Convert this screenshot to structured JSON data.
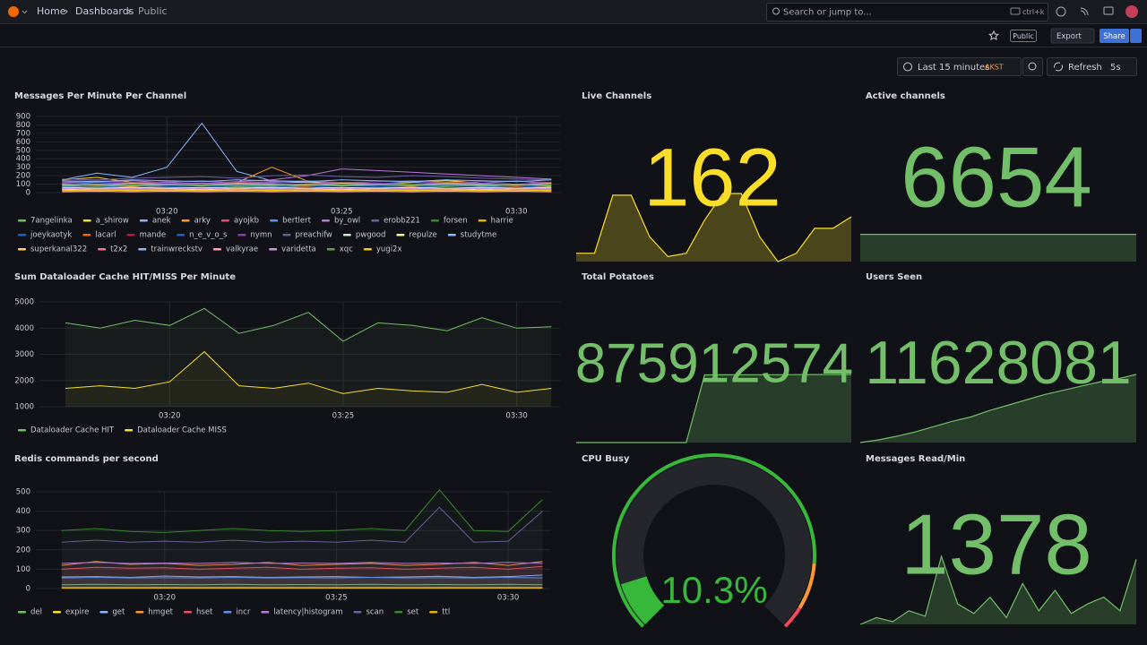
{
  "header": {
    "breadcrumbs": [
      "Home",
      "Dashboards",
      "Public"
    ],
    "search": "Search or jump to...",
    "shortcut": "ctrl+k"
  },
  "toolbar": {
    "public": "Public",
    "export": "Export",
    "share": "Share",
    "time_range": "Last 15 minutes",
    "timezone": "AKST",
    "refresh": "Refresh",
    "interval": "5s"
  },
  "panels": [
    {
      "type": "timeseries",
      "title": "Messages Per Minute Per Channel",
      "x": [
        197,
        198,
        199,
        200,
        201,
        202,
        203,
        204,
        205,
        206,
        207,
        208,
        209,
        210,
        211
      ],
      "xlim": [
        196.25,
        211.25
      ],
      "xticks": [
        {
          "value": 200,
          "label": "03:20"
        },
        {
          "value": 205,
          "label": "03:25"
        },
        {
          "value": 210,
          "label": "03:30"
        }
      ],
      "ylim": [
        0,
        900
      ],
      "yticks": [
        0,
        100,
        200,
        300,
        400,
        500,
        600,
        700,
        800,
        900
      ],
      "fill": false,
      "series": [
        {
          "name": "7angelinka",
          "color": "#73BF69",
          "values": [
            60,
            70,
            80,
            60,
            50,
            70,
            60,
            80,
            90,
            70,
            60,
            70,
            80,
            60,
            70
          ]
        },
        {
          "name": "a_shirow",
          "color": "#FADE2A",
          "values": [
            150,
            180,
            120,
            100,
            90,
            110,
            130,
            120,
            110,
            100,
            120,
            140,
            110,
            100,
            120
          ]
        },
        {
          "name": "anek",
          "color": "#8AB8FF",
          "values": [
            150,
            230,
            180,
            300,
            820,
            250,
            140,
            130,
            120,
            110,
            100,
            120,
            110,
            100,
            90
          ]
        },
        {
          "name": "arky",
          "color": "#FF9830",
          "values": [
            80,
            60,
            70,
            90,
            100,
            120,
            300,
            140,
            120,
            100,
            130,
            150,
            110,
            100,
            90
          ]
        },
        {
          "name": "ayojkb",
          "color": "#F2495C",
          "values": [
            40,
            50,
            60,
            50,
            40,
            60,
            50,
            40,
            60,
            50,
            40,
            50,
            60,
            50,
            40
          ]
        },
        {
          "name": "bertlert",
          "color": "#5794F2",
          "values": [
            100,
            120,
            110,
            130,
            90,
            100,
            120,
            140,
            110,
            100,
            130,
            120,
            110,
            140,
            100
          ]
        },
        {
          "name": "by_owl",
          "color": "#B877D9",
          "values": [
            120,
            130,
            140,
            120,
            110,
            130,
            150,
            200,
            280,
            260,
            240,
            220,
            200,
            180,
            160
          ]
        },
        {
          "name": "erobb221",
          "color": "#705DA0",
          "values": [
            160,
            150,
            170,
            180,
            190,
            170,
            200,
            210,
            190,
            180,
            200,
            190,
            170,
            160,
            150
          ]
        },
        {
          "name": "forsen",
          "color": "#37872D",
          "values": [
            30,
            40,
            30,
            50,
            40,
            30,
            40,
            50,
            30,
            40,
            30,
            40,
            50,
            40,
            30
          ]
        },
        {
          "name": "harrie",
          "color": "#E0B400",
          "values": [
            20,
            30,
            20,
            30,
            20,
            30,
            20,
            30,
            20,
            30,
            20,
            30,
            20,
            30,
            20
          ]
        },
        {
          "name": "joeykaotyk",
          "color": "#1F60C4",
          "values": [
            90,
            80,
            100,
            90,
            80,
            100,
            90,
            80,
            100,
            90,
            80,
            100,
            90,
            80,
            100
          ]
        },
        {
          "name": "lacarl",
          "color": "#FA6400",
          "values": [
            50,
            60,
            50,
            70,
            60,
            50,
            60,
            70,
            50,
            60,
            70,
            50,
            60,
            70,
            60
          ]
        },
        {
          "name": "mande",
          "color": "#C4162A",
          "values": [
            10,
            20,
            10,
            20,
            10,
            20,
            10,
            20,
            10,
            20,
            10,
            20,
            10,
            20,
            10
          ]
        },
        {
          "name": "n_e_v_o_s",
          "color": "#1F60C4",
          "values": [
            70,
            60,
            80,
            70,
            60,
            80,
            70,
            60,
            80,
            70,
            60,
            80,
            70,
            60,
            80
          ]
        },
        {
          "name": "nymn",
          "color": "#8F3BB8",
          "values": [
            110,
            100,
            120,
            110,
            100,
            120,
            110,
            100,
            120,
            110,
            100,
            120,
            110,
            100,
            120
          ]
        },
        {
          "name": "preachifw",
          "color": "#705DA0",
          "values": [
            130,
            140,
            120,
            130,
            140,
            120,
            130,
            140,
            120,
            130,
            140,
            120,
            130,
            140,
            120
          ]
        },
        {
          "name": "pwgood",
          "color": "#C8F2C2",
          "values": [
            40,
            30,
            40,
            30,
            40,
            30,
            40,
            30,
            40,
            30,
            40,
            30,
            40,
            30,
            40
          ]
        },
        {
          "name": "repulze",
          "color": "#FFF899",
          "values": [
            60,
            50,
            60,
            50,
            60,
            50,
            60,
            50,
            60,
            50,
            60,
            50,
            60,
            50,
            60
          ]
        },
        {
          "name": "studytme",
          "color": "#8AB8FF",
          "values": [
            80,
            90,
            80,
            90,
            80,
            90,
            80,
            90,
            80,
            90,
            80,
            90,
            80,
            90,
            80
          ]
        },
        {
          "name": "superkanal322",
          "color": "#FFCB7D",
          "values": [
            100,
            90,
            110,
            100,
            90,
            110,
            100,
            90,
            110,
            100,
            90,
            110,
            100,
            90,
            110
          ]
        },
        {
          "name": "t2x2",
          "color": "#FF7383",
          "values": [
            20,
            30,
            40,
            30,
            20,
            30,
            40,
            30,
            20,
            30,
            40,
            30,
            20,
            30,
            40
          ]
        },
        {
          "name": "trainwreckstv",
          "color": "#8AB8FF",
          "values": [
            140,
            130,
            150,
            140,
            130,
            150,
            140,
            130,
            150,
            140,
            130,
            150,
            140,
            130,
            150
          ]
        },
        {
          "name": "valkyrae",
          "color": "#FFA6B0",
          "values": [
            10,
            15,
            10,
            15,
            10,
            15,
            10,
            15,
            10,
            15,
            10,
            15,
            10,
            15,
            10
          ]
        },
        {
          "name": "varidetta",
          "color": "#CA95E5",
          "values": [
            50,
            40,
            50,
            40,
            50,
            40,
            50,
            40,
            50,
            40,
            50,
            40,
            50,
            40,
            50
          ]
        },
        {
          "name": "xqc",
          "color": "#56A64B",
          "values": [
            90,
            100,
            90,
            100,
            90,
            100,
            90,
            100,
            90,
            100,
            90,
            100,
            90,
            100,
            90
          ]
        },
        {
          "name": "yugi2x",
          "color": "#F2CC0C",
          "values": [
            30,
            20,
            30,
            20,
            30,
            20,
            30,
            20,
            30,
            20,
            30,
            20,
            30,
            20,
            30
          ]
        }
      ]
    },
    {
      "type": "stat",
      "title": "Live Channels",
      "value": 162,
      "color": "#FADE2A",
      "sparkline": [
        140,
        140,
        175,
        175,
        150,
        138,
        140,
        160,
        176,
        176,
        150,
        135,
        140,
        155,
        155,
        162
      ]
    },
    {
      "type": "stat",
      "title": "Active channels",
      "value": 6654,
      "color": "#73BF69",
      "sparkline": [
        6654,
        6654,
        6654,
        6654,
        6654,
        6654,
        6654,
        6654,
        6654,
        6654
      ]
    },
    {
      "type": "timeseries",
      "title": "Sum Dataloader Cache HIT/MISS Per Minute",
      "x": [
        197,
        198,
        199,
        200,
        201,
        202,
        203,
        204,
        205,
        206,
        207,
        208,
        209,
        210,
        211
      ],
      "xlim": [
        196.25,
        211.25
      ],
      "xticks": [
        {
          "value": 200,
          "label": "03:20"
        },
        {
          "value": 205,
          "label": "03:25"
        },
        {
          "value": 210,
          "label": "03:30"
        }
      ],
      "ylim": [
        1000,
        5000
      ],
      "yticks": [
        1000,
        2000,
        3000,
        4000,
        5000
      ],
      "fill": true,
      "series": [
        {
          "name": "Dataloader Cache HIT",
          "color": "#73BF69",
          "values": [
            4200,
            4000,
            4300,
            4100,
            4750,
            3800,
            4100,
            4600,
            3500,
            4200,
            4100,
            3900,
            4400,
            4000,
            4050
          ]
        },
        {
          "name": "Dataloader Cache MISS",
          "color": "#FADE2A",
          "values": [
            1700,
            1800,
            1700,
            1950,
            3100,
            1800,
            1700,
            1900,
            1500,
            1700,
            1600,
            1550,
            1850,
            1550,
            1700
          ]
        }
      ]
    },
    {
      "type": "stat",
      "title": "Total Potatoes",
      "value": 875912574,
      "color": "#73BF69",
      "sparkline": [
        0,
        0,
        0,
        0,
        0,
        0,
        0,
        870000000,
        871000000,
        872000000,
        872500000,
        873000000,
        873800000,
        874500000,
        875000000,
        875912574
      ]
    },
    {
      "type": "stat",
      "title": "Users Seen",
      "value": 11628081,
      "color": "#73BF69",
      "sparkline": [
        11500000,
        11505000,
        11512000,
        11520000,
        11530000,
        11540000,
        11548000,
        11560000,
        11570000,
        11580000,
        11590000,
        11598000,
        11606000,
        11614000,
        11620000,
        11628081
      ]
    },
    {
      "type": "timeseries",
      "title": "Redis commands per second",
      "x": [
        197,
        198,
        199,
        200,
        201,
        202,
        203,
        204,
        205,
        206,
        207,
        208,
        209,
        210,
        211
      ],
      "xlim": [
        196.25,
        211.25
      ],
      "xticks": [
        {
          "value": 200,
          "label": "03:20"
        },
        {
          "value": 205,
          "label": "03:25"
        },
        {
          "value": 210,
          "label": "03:30"
        }
      ],
      "ylim": [
        0,
        500
      ],
      "yticks": [
        0,
        100,
        200,
        300,
        400,
        500
      ],
      "fill": true,
      "series": [
        {
          "name": "del",
          "color": "#73BF69",
          "values": [
            20,
            22,
            20,
            21,
            20,
            22,
            20,
            21,
            20,
            22,
            20,
            21,
            20,
            22,
            20
          ]
        },
        {
          "name": "expire",
          "color": "#FADE2A",
          "values": [
            5,
            5,
            5,
            5,
            5,
            5,
            5,
            5,
            5,
            5,
            5,
            5,
            5,
            5,
            5
          ]
        },
        {
          "name": "get",
          "color": "#8AB8FF",
          "values": [
            60,
            62,
            58,
            65,
            60,
            62,
            58,
            60,
            62,
            58,
            60,
            64,
            58,
            62,
            70
          ]
        },
        {
          "name": "hmget",
          "color": "#FF9830",
          "values": [
            120,
            140,
            125,
            130,
            120,
            125,
            135,
            120,
            125,
            130,
            120,
            125,
            135,
            120,
            140
          ]
        },
        {
          "name": "hset",
          "color": "#F2495C",
          "values": [
            100,
            110,
            105,
            108,
            100,
            105,
            110,
            100,
            105,
            108,
            100,
            105,
            110,
            100,
            115
          ]
        },
        {
          "name": "incr",
          "color": "#5794F2",
          "values": [
            55,
            58,
            55,
            56,
            55,
            58,
            55,
            56,
            55,
            58,
            55,
            56,
            55,
            58,
            55
          ]
        },
        {
          "name": "latency|histogram",
          "color": "#B877D9",
          "values": [
            130,
            135,
            130,
            132,
            130,
            135,
            130,
            132,
            130,
            135,
            130,
            132,
            130,
            135,
            130
          ]
        },
        {
          "name": "scan",
          "color": "#705DA0",
          "values": [
            240,
            250,
            240,
            245,
            240,
            250,
            240,
            245,
            240,
            250,
            240,
            420,
            240,
            245,
            400
          ]
        },
        {
          "name": "set",
          "color": "#37872D",
          "values": [
            300,
            310,
            295,
            290,
            300,
            310,
            300,
            295,
            300,
            310,
            300,
            510,
            300,
            295,
            460
          ]
        },
        {
          "name": "ttl",
          "color": "#E0B400",
          "values": [
            2,
            2,
            2,
            2,
            2,
            2,
            2,
            2,
            2,
            2,
            2,
            2,
            2,
            2,
            2
          ]
        }
      ]
    },
    {
      "type": "gauge",
      "title": "CPU Busy",
      "value": 10.3,
      "value_label": "10.3%",
      "min": 0,
      "max": 100,
      "color": "#37B83A",
      "thresholds": [
        {
          "value": 0,
          "color": "#37B83A"
        },
        {
          "value": 85,
          "color": "#FF9830"
        },
        {
          "value": 95,
          "color": "#F2495C"
        }
      ]
    },
    {
      "type": "stat",
      "title": "Messages Read/Min",
      "value": 1378,
      "color": "#73BF69",
      "sparkline": [
        900,
        950,
        920,
        1000,
        960,
        1400,
        1050,
        980,
        1100,
        950,
        1200,
        1000,
        1150,
        980,
        1050,
        1100,
        1000,
        1378
      ]
    }
  ]
}
